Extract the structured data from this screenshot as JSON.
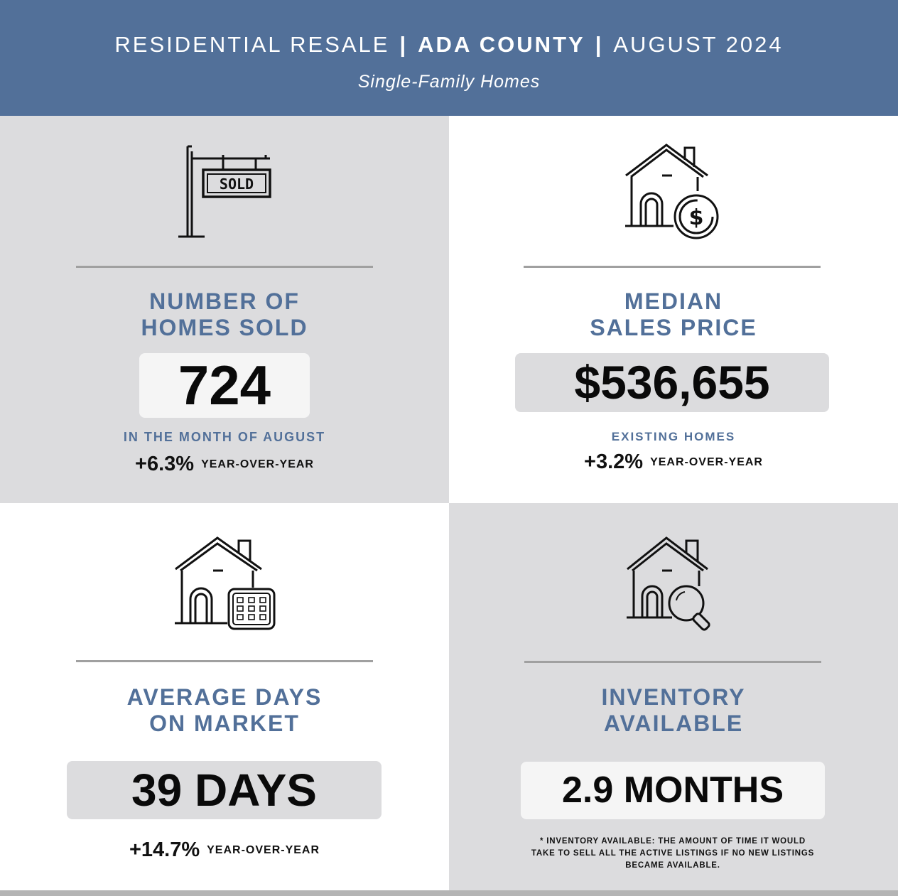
{
  "header": {
    "title_left": "RESIDENTIAL RESALE",
    "separator": "|",
    "title_middle": "ADA COUNTY",
    "title_right": "AUGUST 2024",
    "subtitle": "Single-Family Homes"
  },
  "colors": {
    "brand_blue": "#527099",
    "panel_gray": "#dcdcde",
    "value_box_light": "#f5f5f5"
  },
  "stats": [
    {
      "icon": "sold-sign-icon",
      "heading_line1": "NUMBER OF",
      "heading_line2": "HOMES SOLD",
      "value": "724",
      "caption": "IN THE MONTH OF AUGUST",
      "change": "+6.3%",
      "change_label": "YEAR-OVER-YEAR"
    },
    {
      "icon": "house-dollar-icon",
      "heading_line1": "MEDIAN",
      "heading_line2": "SALES PRICE",
      "value": "$536,655",
      "caption": "EXISTING HOMES",
      "change": "+3.2%",
      "change_label": "YEAR-OVER-YEAR"
    },
    {
      "icon": "house-calendar-icon",
      "heading_line1": "AVERAGE DAYS",
      "heading_line2": "ON MARKET",
      "value": "39 DAYS",
      "change": "+14.7%",
      "change_label": "YEAR-OVER-YEAR"
    },
    {
      "icon": "house-search-icon",
      "heading_line1": "INVENTORY",
      "heading_line2": "AVAILABLE",
      "value": "2.9 MONTHS",
      "footnote": "* INVENTORY AVAILABLE: THE AMOUNT OF TIME IT WOULD TAKE TO SELL ALL THE ACTIVE LISTINGS IF NO NEW LISTINGS BECAME AVAILABLE."
    }
  ]
}
